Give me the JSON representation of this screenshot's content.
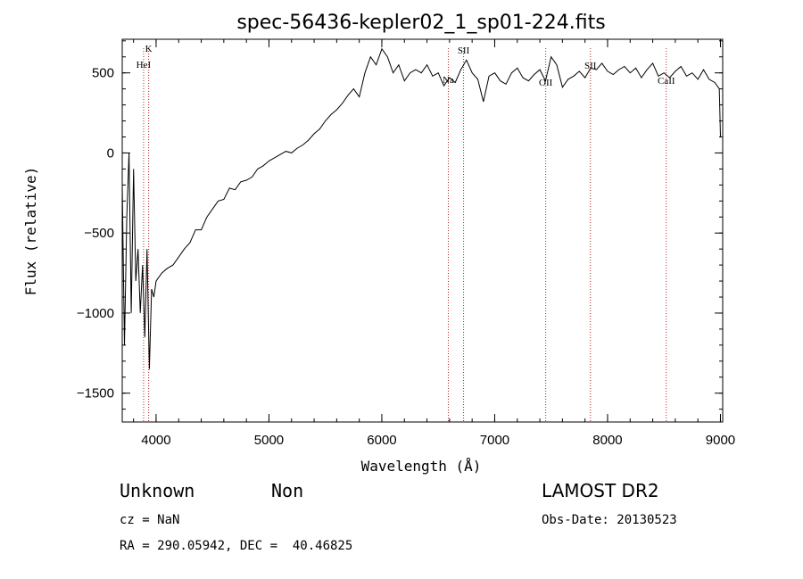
{
  "chart_data": {
    "type": "line",
    "title": "spec-56436-kepler02_1_sp01-224.fits",
    "xlabel": "Wavelength (Å)",
    "ylabel": "Flux (relative)",
    "xlim": [
      3700,
      9020
    ],
    "ylim": [
      -1680,
      710
    ],
    "xticks": [
      4000,
      5000,
      6000,
      7000,
      8000,
      9000
    ],
    "yticks": [
      -1500,
      -1000,
      -500,
      0,
      500
    ],
    "grid": false,
    "series": [
      {
        "x": [
          3700,
          3720,
          3740,
          3760,
          3780,
          3800,
          3820,
          3840,
          3860,
          3880,
          3900,
          3920,
          3940,
          3960,
          3980,
          4000,
          4050,
          4100,
          4150,
          4200,
          4250,
          4300,
          4350,
          4400,
          4450,
          4500,
          4550,
          4600,
          4650,
          4700,
          4750,
          4800,
          4850,
          4900,
          4950,
          5000,
          5050,
          5100,
          5150,
          5200,
          5250,
          5300,
          5350,
          5400,
          5450,
          5500,
          5550,
          5600,
          5650,
          5700,
          5750,
          5800,
          5850,
          5900,
          5950,
          6000,
          6050,
          6100,
          6150,
          6200,
          6250,
          6300,
          6350,
          6400,
          6450,
          6500,
          6550,
          6600,
          6650,
          6700,
          6750,
          6800,
          6850,
          6900,
          6950,
          7000,
          7050,
          7100,
          7150,
          7200,
          7250,
          7300,
          7350,
          7400,
          7450,
          7500,
          7550,
          7600,
          7650,
          7700,
          7750,
          7800,
          7850,
          7900,
          7950,
          8000,
          8050,
          8100,
          8150,
          8200,
          8250,
          8300,
          8350,
          8400,
          8450,
          8500,
          8550,
          8600,
          8650,
          8700,
          8750,
          8800,
          8850,
          8900,
          8950,
          8990,
          9000
        ],
        "y": [
          -200,
          -1200,
          -400,
          0,
          -1000,
          -100,
          -800,
          -600,
          -1000,
          -700,
          -1150,
          -600,
          -1350,
          -850,
          -900,
          -800,
          -750,
          -720,
          -700,
          -650,
          -600,
          -560,
          -480,
          -480,
          -400,
          -350,
          -300,
          -290,
          -220,
          -230,
          -180,
          -170,
          -150,
          -100,
          -80,
          -50,
          -30,
          -10,
          10,
          0,
          30,
          50,
          80,
          120,
          150,
          200,
          240,
          270,
          310,
          360,
          400,
          350,
          500,
          600,
          550,
          650,
          600,
          500,
          550,
          450,
          500,
          520,
          500,
          550,
          480,
          500,
          420,
          470,
          440,
          520,
          580,
          500,
          460,
          320,
          480,
          500,
          450,
          430,
          500,
          530,
          470,
          450,
          490,
          520,
          450,
          600,
          550,
          410,
          460,
          480,
          510,
          470,
          530,
          520,
          560,
          510,
          490,
          520,
          540,
          500,
          530,
          470,
          520,
          560,
          480,
          500,
          470,
          510,
          540,
          480,
          500,
          460,
          520,
          460,
          440,
          400,
          100
        ]
      }
    ],
    "annotations": [
      {
        "label": "K",
        "x": 3934
      },
      {
        "label": "HeI",
        "x": 3889
      },
      {
        "label": "SII",
        "x": 6724
      },
      {
        "label": "Na",
        "x": 6589
      },
      {
        "label": "OII",
        "x": 7452
      },
      {
        "label": "SII",
        "x": 7848
      },
      {
        "label": "CaII",
        "x": 8520
      }
    ]
  },
  "info": {
    "class_label": "Unknown",
    "subclass_label": "Non",
    "survey": "LAMOST DR2",
    "cz": "cz = NaN",
    "obs_date": "Obs-Date: 20130523",
    "coords": "RA = 290.05942, DEC =  40.46825"
  }
}
